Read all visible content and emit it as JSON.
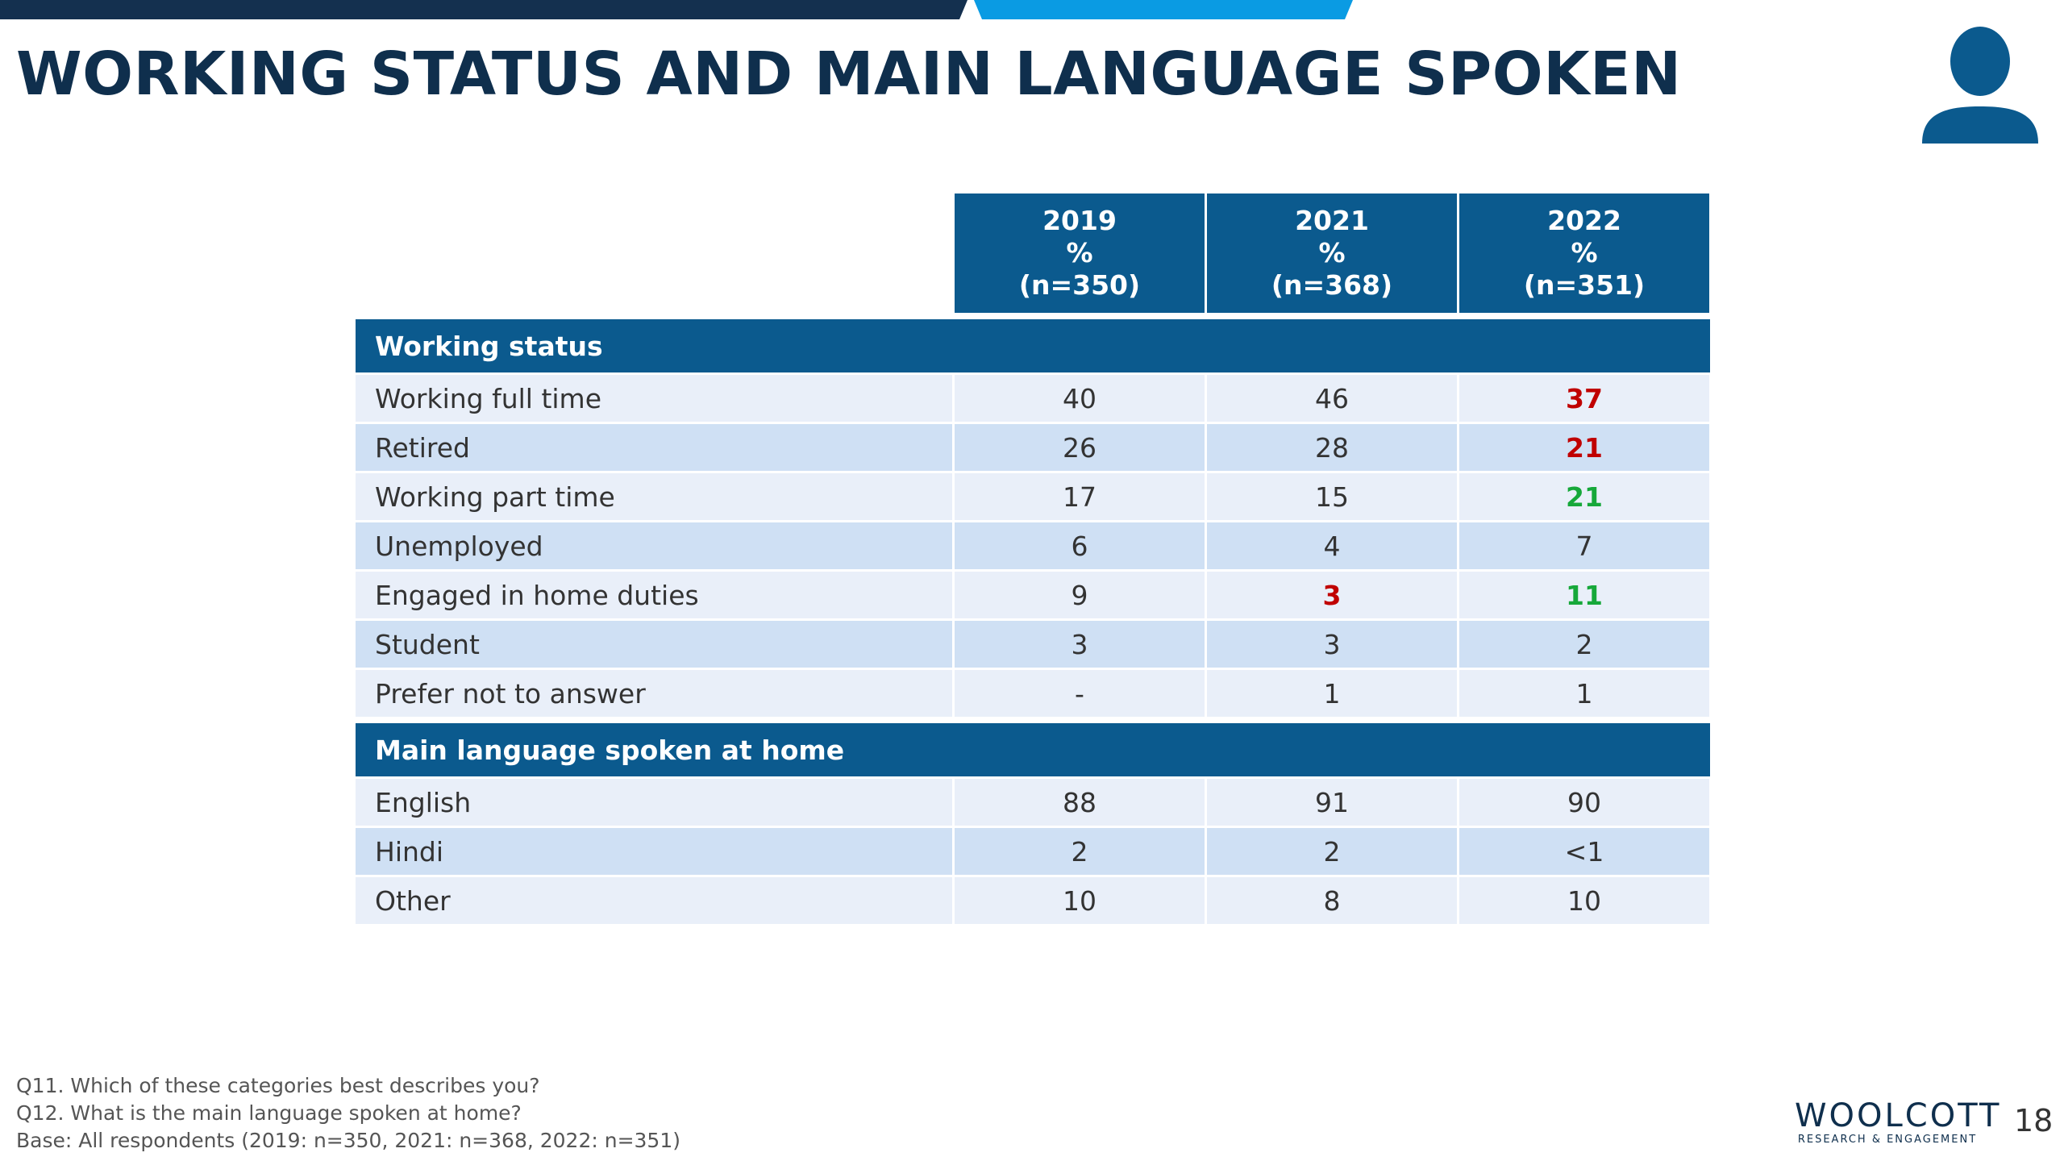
{
  "title": "WORKING STATUS AND MAIN LANGUAGE SPOKEN",
  "icons": {
    "presenter": "person-icon"
  },
  "colors": {
    "navy": "#0f2f4d",
    "header_blue": "#0b5a8e",
    "accent_blue": "#0a9be3",
    "row_light": "#e9eff9",
    "row_dark": "#cfe0f4",
    "significant_low": "#c00000",
    "significant_high": "#16a83a"
  },
  "table": {
    "columns": [
      {
        "year": "2019",
        "unit": "%",
        "base": "(n=350)"
      },
      {
        "year": "2021",
        "unit": "%",
        "base": "(n=368)"
      },
      {
        "year": "2022",
        "unit": "%",
        "base": "(n=351)"
      }
    ],
    "sections": [
      {
        "title": "Working status",
        "rows": [
          {
            "label": "Working full time",
            "values": [
              "40",
              "46",
              "37"
            ]
          },
          {
            "label": "Retired",
            "values": [
              "26",
              "28",
              "21"
            ]
          },
          {
            "label": "Working part time",
            "values": [
              "17",
              "15",
              "21"
            ]
          },
          {
            "label": "Unemployed",
            "values": [
              "6",
              "4",
              "7"
            ]
          },
          {
            "label": "Engaged in home duties",
            "values": [
              "9",
              "3",
              "11"
            ]
          },
          {
            "label": "Student",
            "values": [
              "3",
              "3",
              "2"
            ]
          },
          {
            "label": "Prefer not to answer",
            "values": [
              "-",
              "1",
              "1"
            ]
          }
        ]
      },
      {
        "title": "Main language spoken at home",
        "rows": [
          {
            "label": "English",
            "values": [
              "88",
              "91",
              "90"
            ]
          },
          {
            "label": "Hindi",
            "values": [
              "2",
              "2",
              "<1"
            ]
          },
          {
            "label": "Other",
            "values": [
              "10",
              "8",
              "10"
            ]
          }
        ]
      }
    ]
  },
  "notes": [
    "Q11. Which of these categories best describes you?",
    "Q12. What is the main language spoken at home?",
    "Base: All respondents (2019: n=350, 2021: n=368, 2022: n=351)"
  ],
  "logo": {
    "name": "WOOLCOTT",
    "tagline": "RESEARCH & ENGAGEMENT"
  },
  "page_number": "18"
}
